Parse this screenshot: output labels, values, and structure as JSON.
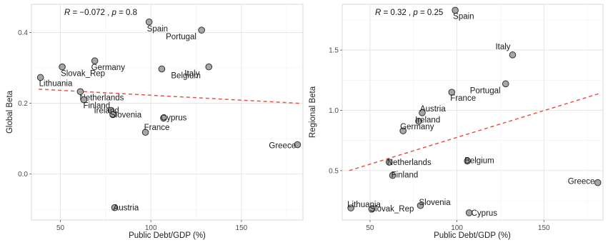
{
  "chart_data": [
    {
      "type": "scatter",
      "xlabel": "Public Debt/GDP (%)",
      "ylabel": "Global Beta",
      "stat": {
        "r": "−0.072",
        "p": "0.8"
      },
      "xlim": [
        34,
        184
      ],
      "ylim": [
        -0.13,
        0.48
      ],
      "xticks": [
        50,
        100,
        150
      ],
      "yticks": [
        0.0,
        0.2,
        0.4
      ],
      "ytick_labels": [
        "0.0",
        "0.2",
        "0.4"
      ],
      "trend": {
        "x": [
          38,
          182
        ],
        "y": [
          0.24,
          0.2
        ]
      },
      "grid": true,
      "points": [
        {
          "label": "Spain",
          "x": 99,
          "y": 0.43
        },
        {
          "label": "Portugal",
          "x": 128,
          "y": 0.407
        },
        {
          "label": "Germany",
          "x": 69,
          "y": 0.32
        },
        {
          "label": "Slovak_Rep",
          "x": 51,
          "y": 0.303
        },
        {
          "label": "Italy",
          "x": 132,
          "y": 0.303
        },
        {
          "label": "Belgium",
          "x": 106,
          "y": 0.297
        },
        {
          "label": "Lithuania",
          "x": 39,
          "y": 0.273
        },
        {
          "label": "Netherlands",
          "x": 61,
          "y": 0.233
        },
        {
          "label": "Finland",
          "x": 63,
          "y": 0.21
        },
        {
          "label": "Ireland",
          "x": 78,
          "y": 0.18
        },
        {
          "label": "Slovenia",
          "x": 79,
          "y": 0.168
        },
        {
          "label": "Cyprus",
          "x": 107,
          "y": 0.158
        },
        {
          "label": "France",
          "x": 97,
          "y": 0.118
        },
        {
          "label": "Greece",
          "x": 181,
          "y": 0.083
        },
        {
          "label": "Austria",
          "x": 80,
          "y": -0.095
        }
      ]
    },
    {
      "type": "scatter",
      "xlabel": "Public Debt/GDP (%)",
      "ylabel": "Regional Beta",
      "stat": {
        "r": "0.32",
        "p": "0.25"
      },
      "xlim": [
        34,
        184
      ],
      "ylim": [
        0.09,
        1.88
      ],
      "xticks": [
        50,
        100,
        150
      ],
      "yticks": [
        0.5,
        1.0,
        1.5
      ],
      "ytick_labels": [
        "0.5",
        "1.0",
        "1.5"
      ],
      "trend": {
        "x": [
          38,
          182
        ],
        "y": [
          0.5,
          1.14
        ]
      },
      "grid": true,
      "points": [
        {
          "label": "Spain",
          "x": 99,
          "y": 1.83
        },
        {
          "label": "Italy",
          "x": 132,
          "y": 1.46
        },
        {
          "label": "Portugal",
          "x": 128,
          "y": 1.22
        },
        {
          "label": "France",
          "x": 97,
          "y": 1.15
        },
        {
          "label": "Austria",
          "x": 80,
          "y": 0.98
        },
        {
          "label": "Ireland",
          "x": 78,
          "y": 0.91
        },
        {
          "label": "Germany",
          "x": 69,
          "y": 0.83
        },
        {
          "label": "Belgium",
          "x": 106,
          "y": 0.58
        },
        {
          "label": "Netherlands",
          "x": 61,
          "y": 0.57
        },
        {
          "label": "Finland",
          "x": 63,
          "y": 0.46
        },
        {
          "label": "Greece",
          "x": 181,
          "y": 0.4
        },
        {
          "label": "Lithuania",
          "x": 39,
          "y": 0.19
        },
        {
          "label": "Slovak_Rep",
          "x": 51,
          "y": 0.18
        },
        {
          "label": "Slovenia",
          "x": 79,
          "y": 0.21
        },
        {
          "label": "Cyprus",
          "x": 107,
          "y": 0.15
        }
      ]
    }
  ]
}
